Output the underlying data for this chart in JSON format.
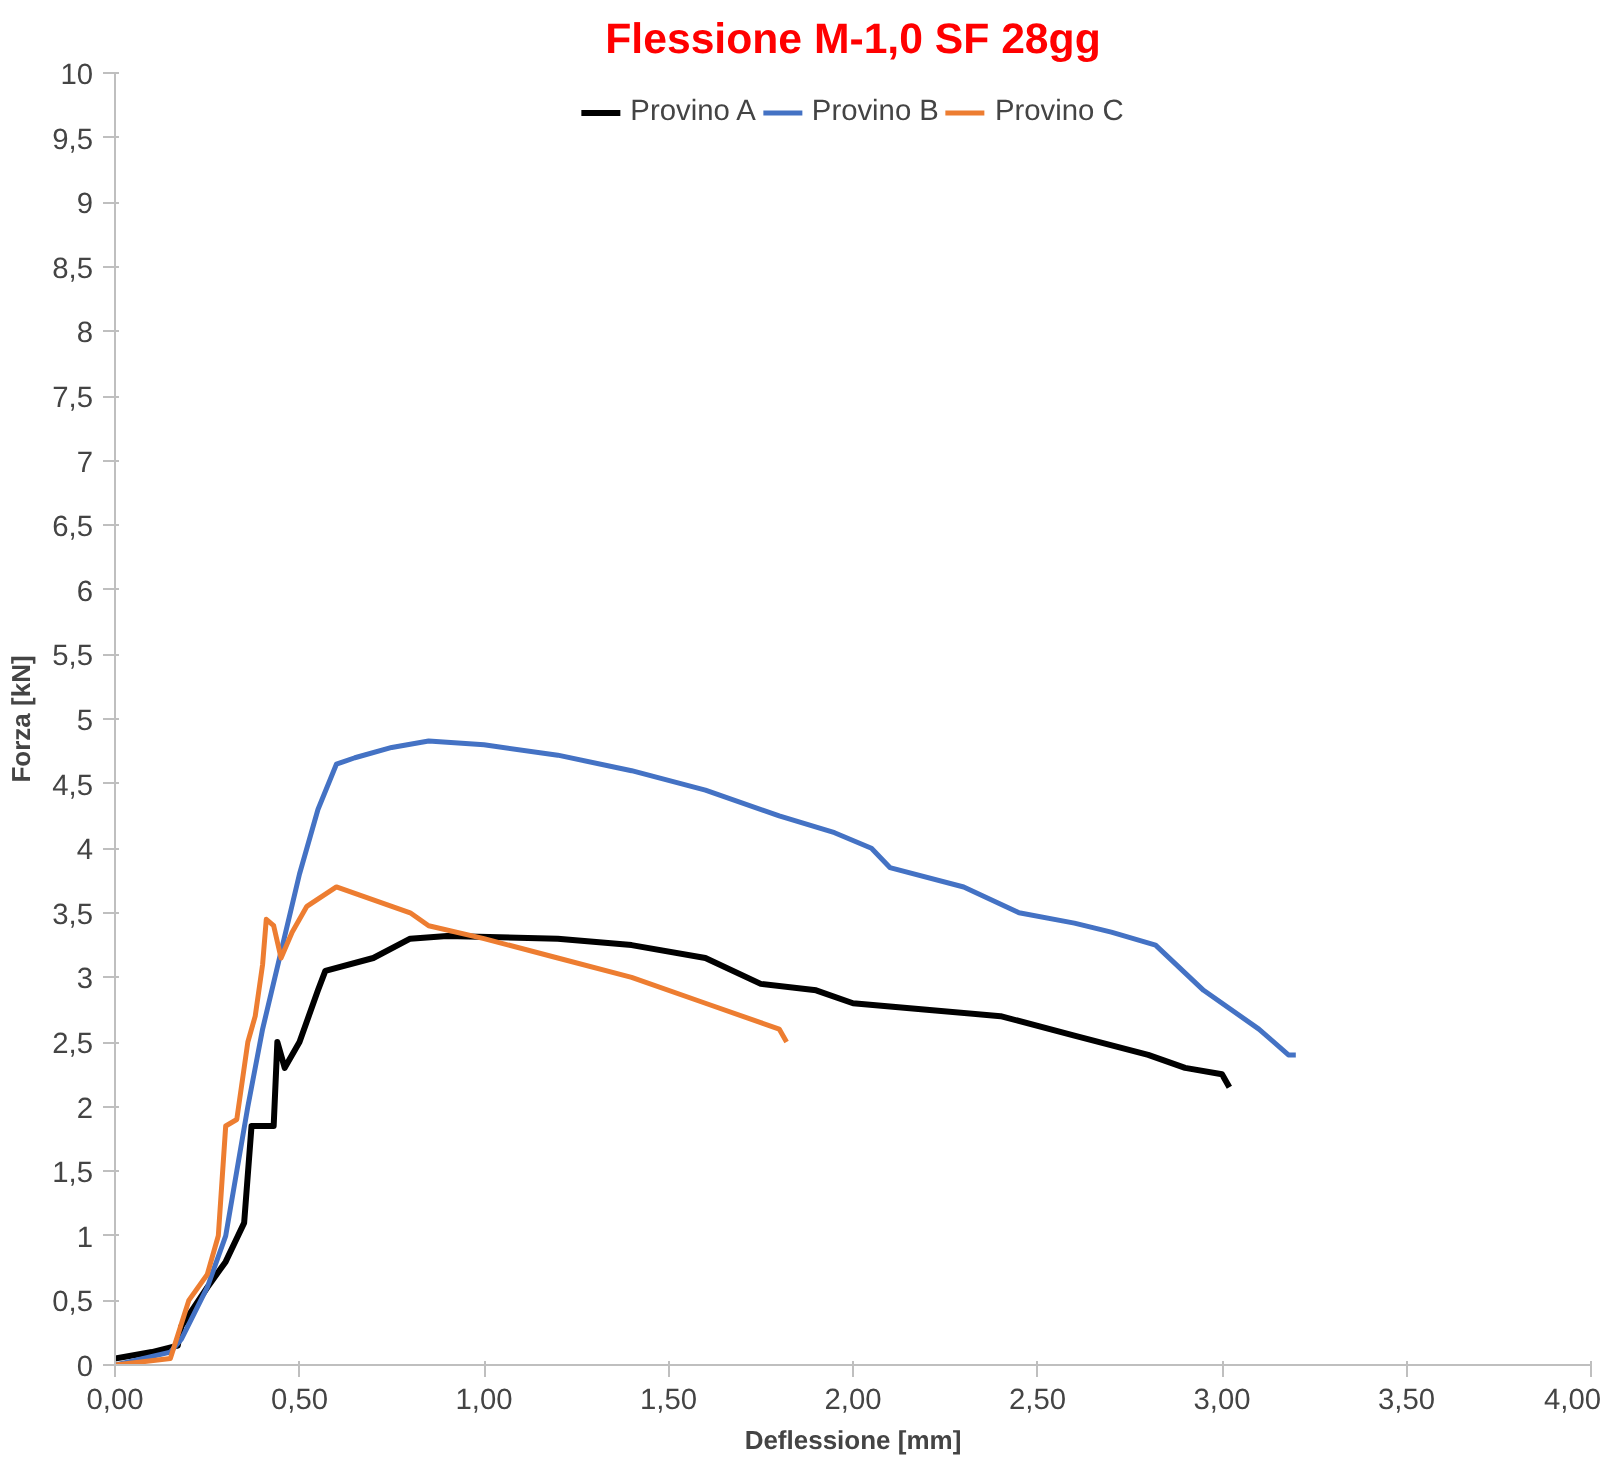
{
  "chart_data": {
    "type": "line",
    "title": "Flessione M-1,0 SF 28gg",
    "xlabel": "Deflessione [mm]",
    "ylabel": "Forza [kN]",
    "legend": "top",
    "grid": false,
    "marker": "none",
    "line_style": "solid",
    "xlim": [
      0,
      4
    ],
    "ylim": [
      0,
      10
    ],
    "xticks": [
      {
        "value": 0,
        "label": "0,00"
      },
      {
        "value": 0.5,
        "label": "0,50"
      },
      {
        "value": 1,
        "label": "1,00"
      },
      {
        "value": 1.5,
        "label": "1,50"
      },
      {
        "value": 2,
        "label": "2,00"
      },
      {
        "value": 2.5,
        "label": "2,50"
      },
      {
        "value": 3,
        "label": "3,00"
      },
      {
        "value": 3.5,
        "label": "3,50"
      },
      {
        "value": 4,
        "label": "4,00"
      }
    ],
    "yticks": [
      0,
      {
        "value": 0.5,
        "label": "0,5"
      },
      1,
      {
        "value": 1.5,
        "label": "1,5"
      },
      2,
      {
        "value": 2.5,
        "label": "2,5"
      },
      3,
      {
        "value": 3.5,
        "label": "3,5"
      },
      4,
      {
        "value": 4.5,
        "label": "4,5"
      },
      5,
      {
        "value": 5.5,
        "label": "5,5"
      },
      6,
      {
        "value": 6.5,
        "label": "6,5"
      },
      7,
      {
        "value": 7.5,
        "label": "7,5"
      },
      8,
      {
        "value": 8.5,
        "label": "8,5"
      },
      9,
      {
        "value": 9.5,
        "label": "9,5"
      },
      10
    ],
    "series": [
      {
        "name": "Provino A",
        "color": "#000000",
        "x": [
          0,
          0.1,
          0.17,
          0.18,
          0.25,
          0.3,
          0.35,
          0.37,
          0.43,
          0.44,
          0.46,
          0.5,
          0.55,
          0.57,
          0.7,
          0.8,
          0.9,
          1.2,
          1.4,
          1.6,
          1.75,
          1.9,
          2.0,
          2.2,
          2.4,
          2.6,
          2.8,
          2.9,
          3.0,
          3.02
        ],
        "values": [
          0.05,
          0.1,
          0.15,
          0.3,
          0.6,
          0.8,
          1.1,
          1.85,
          1.85,
          2.5,
          2.3,
          2.5,
          2.9,
          3.05,
          3.15,
          3.3,
          3.32,
          3.3,
          3.25,
          3.15,
          2.95,
          2.9,
          2.8,
          2.75,
          2.7,
          2.55,
          2.4,
          2.3,
          2.25,
          2.15
        ]
      },
      {
        "name": "Provino B",
        "color": "#4472c4",
        "x": [
          0,
          0.15,
          0.18,
          0.25,
          0.3,
          0.33,
          0.36,
          0.4,
          0.45,
          0.5,
          0.55,
          0.6,
          0.65,
          0.75,
          0.85,
          1.0,
          1.2,
          1.4,
          1.6,
          1.8,
          1.95,
          2.05,
          2.1,
          2.3,
          2.45,
          2.6,
          2.7,
          2.82,
          2.95,
          3.1,
          3.18,
          3.2
        ],
        "values": [
          0,
          0.1,
          0.2,
          0.6,
          1.0,
          1.5,
          2.0,
          2.6,
          3.2,
          3.8,
          4.3,
          4.65,
          4.7,
          4.78,
          4.83,
          4.8,
          4.72,
          4.6,
          4.45,
          4.25,
          4.12,
          4.0,
          3.85,
          3.7,
          3.5,
          3.42,
          3.35,
          3.25,
          2.9,
          2.6,
          2.4,
          2.4
        ]
      },
      {
        "name": "Provino C",
        "color": "#ed7d31",
        "x": [
          0,
          0.15,
          0.2,
          0.25,
          0.28,
          0.3,
          0.33,
          0.36,
          0.38,
          0.4,
          0.41,
          0.43,
          0.45,
          0.48,
          0.52,
          0.6,
          0.65,
          0.7,
          0.8,
          0.85,
          1.0,
          1.2,
          1.4,
          1.6,
          1.75,
          1.8,
          1.82
        ],
        "values": [
          0,
          0.05,
          0.5,
          0.7,
          1.0,
          1.85,
          1.9,
          2.5,
          2.7,
          3.1,
          3.45,
          3.4,
          3.15,
          3.35,
          3.55,
          3.7,
          3.65,
          3.6,
          3.5,
          3.4,
          3.3,
          3.15,
          3.0,
          2.8,
          2.65,
          2.6,
          2.5
        ]
      }
    ]
  }
}
